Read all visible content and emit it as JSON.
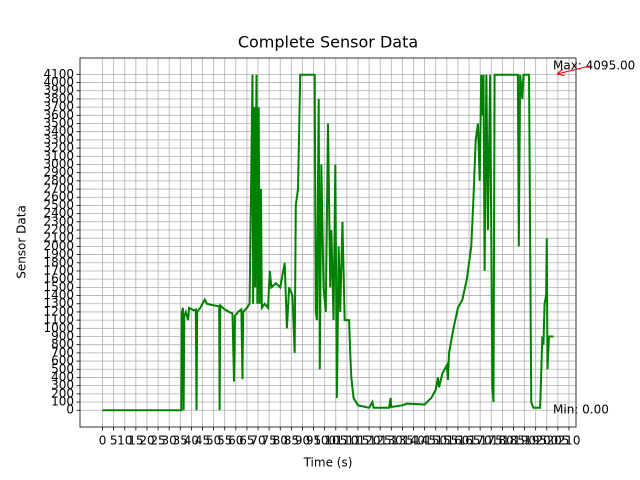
{
  "chart_data": {
    "type": "line",
    "title": "Complete Sensor Data",
    "xlabel": "Time (s)",
    "ylabel": "Sensor Data",
    "x": [
      0,
      35.5,
      35.7,
      36.2,
      36.5,
      36.8,
      37.5,
      38.5,
      39,
      41,
      42,
      42.3,
      42.6,
      44,
      46,
      47,
      50,
      52.5,
      52.7,
      53,
      55,
      57,
      58.5,
      59.2,
      59.6,
      61,
      62.5,
      63,
      63.3,
      65,
      66.2,
      67,
      67.5,
      67.8,
      68.3,
      68.7,
      69.3,
      69.7,
      70.3,
      70.7,
      71.3,
      71.7,
      73,
      74.5,
      75.3,
      76,
      78,
      80,
      82,
      83,
      84,
      85.5,
      86.5,
      87,
      88,
      89,
      95.5,
      96,
      96.5,
      97.3,
      97.8,
      98.5,
      99.5,
      100.5,
      101.5,
      102.5,
      103,
      104,
      104.8,
      105.5,
      106.3,
      107,
      108,
      109,
      111,
      111.5,
      112,
      113,
      115,
      120,
      121.5,
      122,
      129,
      129.7,
      130,
      135,
      137,
      145,
      148,
      150,
      151,
      151.5,
      153,
      155,
      155.5,
      156,
      158,
      160,
      162,
      164,
      166,
      167,
      168,
      169,
      169.8,
      170.5,
      171,
      171.5,
      172,
      172.8,
      173.5,
      174.5,
      175.5,
      176,
      176.5,
      187,
      187.4,
      188,
      189,
      189.5,
      192,
      193,
      194,
      197,
      198,
      198.5,
      199,
      199.7,
      200,
      200.3,
      201,
      203
    ],
    "values": [
      0,
      0,
      1200,
      1250,
      0,
      1150,
      1200,
      1100,
      1250,
      1220,
      1230,
      0,
      1200,
      1250,
      1350,
      1300,
      1280,
      1270,
      0,
      1280,
      1230,
      1200,
      1180,
      350,
      1150,
      1200,
      1230,
      380,
      1200,
      1250,
      1300,
      3000,
      4095,
      1300,
      3700,
      1500,
      4095,
      1300,
      3700,
      1300,
      2700,
      1250,
      1300,
      1250,
      1700,
      1500,
      1550,
      1500,
      1800,
      1000,
      1500,
      1400,
      700,
      2500,
      2700,
      4095,
      4095,
      1200,
      1100,
      3800,
      500,
      3000,
      1500,
      1200,
      3500,
      1500,
      2200,
      1100,
      3000,
      150,
      2000,
      1200,
      2300,
      1100,
      1100,
      700,
      400,
      150,
      60,
      30,
      100,
      30,
      30,
      150,
      40,
      60,
      80,
      70,
      150,
      250,
      400,
      280,
      450,
      550,
      370,
      700,
      1000,
      1250,
      1350,
      1600,
      2000,
      2600,
      3300,
      3500,
      2800,
      4095,
      3600,
      4095,
      1700,
      4095,
      2200,
      4095,
      300,
      100,
      4095,
      4095,
      2000,
      4095,
      3800,
      4095,
      4095,
      100,
      30,
      30,
      900,
      800,
      1300,
      1400,
      2100,
      500,
      900,
      900
    ],
    "color": "#008000",
    "xlim": [
      -10.15,
      213.15
    ],
    "ylim": [
      -204.75,
      4299.75
    ],
    "xticks": [
      0,
      5,
      10,
      15,
      20,
      25,
      30,
      35,
      40,
      45,
      50,
      55,
      60,
      65,
      70,
      75,
      80,
      85,
      90,
      95,
      100,
      105,
      110,
      115,
      120,
      125,
      130,
      135,
      140,
      145,
      150,
      155,
      160,
      165,
      170,
      175,
      180,
      185,
      190,
      195,
      200,
      205,
      210
    ],
    "yticks": [
      0,
      100,
      200,
      300,
      400,
      500,
      600,
      700,
      800,
      900,
      1000,
      1100,
      1200,
      1300,
      1400,
      1500,
      1600,
      1700,
      1800,
      1900,
      2000,
      2100,
      2200,
      2300,
      2400,
      2500,
      2600,
      2700,
      2800,
      2900,
      3000,
      3100,
      3200,
      3300,
      3400,
      3500,
      3600,
      3700,
      3800,
      3900,
      4000,
      4100
    ],
    "grid": true,
    "annotations": [
      {
        "text": "Max: 4095.00",
        "color": "#ff0000"
      },
      {
        "text": "Min: 0.00",
        "color": "#008000"
      }
    ]
  }
}
